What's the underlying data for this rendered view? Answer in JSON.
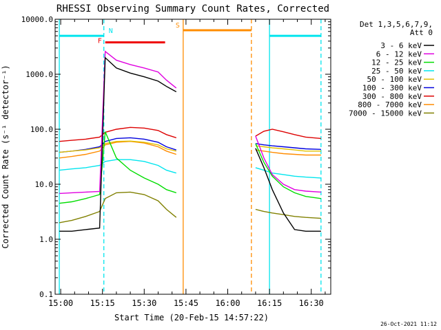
{
  "chart_data": {
    "type": "line",
    "title": "RHESSI Observing Summary Count Rates, Corrected",
    "xlabel": "Start Time (20-Feb-15 14:57:22)",
    "ylabel": "Corrected Count Rate (s⁻¹ detector⁻¹)",
    "yscale": "log",
    "ylim": [
      0.1,
      10000
    ],
    "xlim_minutes": [
      -2,
      97
    ],
    "x_unit": "minutes after 15:00 UT",
    "y_ticks": [
      {
        "v": 10000,
        "label": "10000.0"
      },
      {
        "v": 1000,
        "label": "1000.0"
      },
      {
        "v": 100,
        "label": "100.0"
      },
      {
        "v": 10,
        "label": "10.0"
      },
      {
        "v": 1,
        "label": "1.0"
      },
      {
        "v": 0.1,
        "label": "0.1"
      }
    ],
    "x_ticks": [
      {
        "t": 0,
        "label": "15:00"
      },
      {
        "t": 15,
        "label": "15:15"
      },
      {
        "t": 30,
        "label": "15:30"
      },
      {
        "t": 45,
        "label": "15:45"
      },
      {
        "t": 60,
        "label": "16:00"
      },
      {
        "t": 75,
        "label": "16:15"
      },
      {
        "t": 90,
        "label": "16:30"
      }
    ],
    "legend_header": [
      "Det 1,3,5,6,7,9,",
      "Att 0"
    ],
    "segments": [
      [
        -0.5,
        41.5
      ],
      [
        69.5,
        93.5
      ]
    ],
    "series": [
      {
        "name": "3 - 6 keV",
        "color": "#000000",
        "values": [
          1.4,
          1.4,
          1.5,
          1.6,
          2000,
          1300,
          1050,
          900,
          750,
          600,
          480,
          45,
          20,
          8,
          3,
          1.5,
          1.4,
          1.4
        ]
      },
      {
        "name": "6 - 12 keV",
        "color": "#e000e0",
        "values": [
          6.8,
          7.0,
          7.2,
          7.4,
          2600,
          1800,
          1500,
          1300,
          1100,
          780,
          560,
          75,
          30,
          15,
          10,
          8,
          7.5,
          7.2
        ]
      },
      {
        "name": "12 - 25 keV",
        "color": "#00dd00",
        "values": [
          4.5,
          4.8,
          5.5,
          6.5,
          90,
          30,
          18,
          13,
          10,
          8,
          7,
          55,
          25,
          14,
          9,
          7,
          6,
          5.5
        ]
      },
      {
        "name": "25 - 50 keV",
        "color": "#00e5ee",
        "values": [
          18,
          19,
          20,
          22,
          26,
          28,
          28,
          26,
          22,
          18,
          16,
          20,
          18,
          16,
          15,
          14,
          13.5,
          13
        ]
      },
      {
        "name": "50 - 100 keV",
        "color": "#e0c000",
        "values": [
          38,
          40,
          42,
          46,
          55,
          60,
          61,
          58,
          52,
          44,
          40,
          50,
          48,
          46,
          44,
          42,
          40,
          40
        ]
      },
      {
        "name": "100 - 300 keV",
        "color": "#0000dd",
        "values": [
          38,
          40,
          43,
          48,
          60,
          68,
          70,
          66,
          58,
          48,
          42,
          55,
          52,
          50,
          48,
          46,
          44,
          43
        ]
      },
      {
        "name": "300 - 800 keV",
        "color": "#dd0000",
        "values": [
          60,
          63,
          66,
          72,
          88,
          100,
          108,
          105,
          95,
          80,
          70,
          75,
          92,
          100,
          90,
          80,
          72,
          68
        ]
      },
      {
        "name": "800 - 7000 keV",
        "color": "#ff8c00",
        "values": [
          30,
          32,
          35,
          40,
          52,
          58,
          60,
          56,
          48,
          40,
          35,
          42,
          40,
          38,
          36,
          35,
          34,
          34
        ]
      },
      {
        "name": "7000 - 15000 keV",
        "color": "#808000",
        "values": [
          2.0,
          2.2,
          2.6,
          3.2,
          5.5,
          7.0,
          7.2,
          6.5,
          5.0,
          3.5,
          2.5,
          3.5,
          3.2,
          3.0,
          2.8,
          2.6,
          2.5,
          2.4
        ]
      }
    ],
    "series_times": [
      -0.5,
      4,
      9,
      14,
      16,
      20,
      25,
      30,
      35,
      38,
      41.5,
      70,
      73,
      76,
      80,
      84,
      88,
      93.5
    ],
    "markers": [
      {
        "label": "N",
        "t_start": -0.5,
        "t_end": 15.5,
        "y": 5000,
        "color": "#00e5ee"
      },
      {
        "label": "F",
        "t_start": 16,
        "t_end": 37.5,
        "y": 3800,
        "color": "#ee0000"
      },
      {
        "label": "S",
        "t_start": 44,
        "t_end": 68.5,
        "y": 6300,
        "color": "#ff8c00"
      },
      {
        "label": "",
        "t_start": 75,
        "t_end": 93.5,
        "y": 5000,
        "color": "#00e5ee"
      }
    ],
    "vlines": [
      {
        "t": -0.5,
        "color": "#00e5ee",
        "style": "solid"
      },
      {
        "t": 15.5,
        "color": "#00e5ee",
        "style": "dashed"
      },
      {
        "t": 44,
        "color": "#ff8c00",
        "style": "solid"
      },
      {
        "t": 68.5,
        "color": "#ff8c00",
        "style": "dashed"
      },
      {
        "t": 75,
        "color": "#00e5ee",
        "style": "solid"
      },
      {
        "t": 93.5,
        "color": "#00e5ee",
        "style": "dashed"
      }
    ],
    "timestamp": "26-Oct-2021 11:12"
  }
}
